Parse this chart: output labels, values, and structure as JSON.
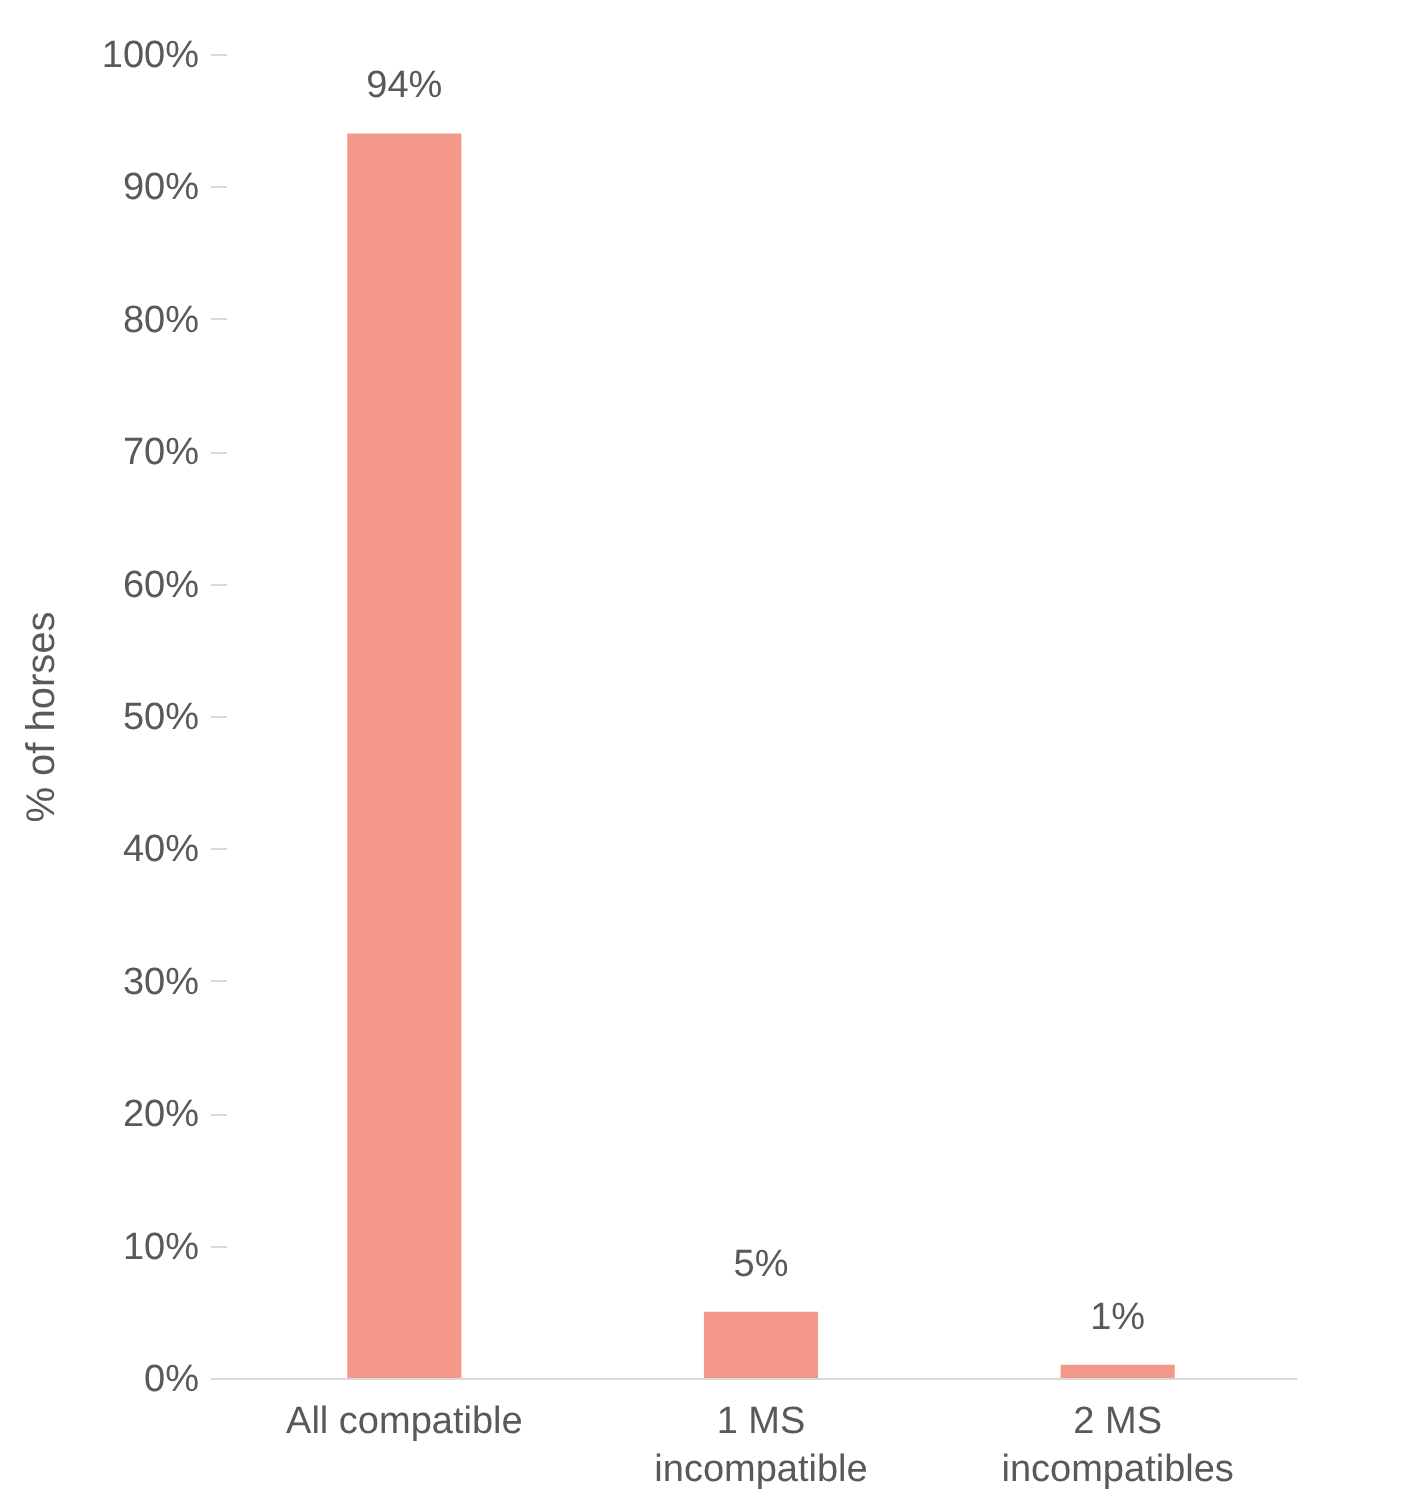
{
  "chart_data": {
    "type": "bar",
    "ylabel": "% of horses",
    "categories": [
      "All compatible",
      "1 MS incompatible",
      "2 MS incompatibles"
    ],
    "values": [
      94,
      5,
      1
    ],
    "color": "#f4998a",
    "value_labels": [
      "94%",
      "5%",
      "1%"
    ],
    "ylim": [
      0,
      100
    ],
    "yticks": [
      {
        "value": 0,
        "label": "0%"
      },
      {
        "value": 10,
        "label": "10%"
      },
      {
        "value": 20,
        "label": "20%"
      },
      {
        "value": 30,
        "label": "30%"
      },
      {
        "value": 40,
        "label": "40%"
      },
      {
        "value": 50,
        "label": "50%"
      },
      {
        "value": 60,
        "label": "60%"
      },
      {
        "value": 70,
        "label": "70%"
      },
      {
        "value": 80,
        "label": "80%"
      },
      {
        "value": 90,
        "label": "90%"
      },
      {
        "value": 100,
        "label": "100%"
      }
    ],
    "grid": false
  }
}
